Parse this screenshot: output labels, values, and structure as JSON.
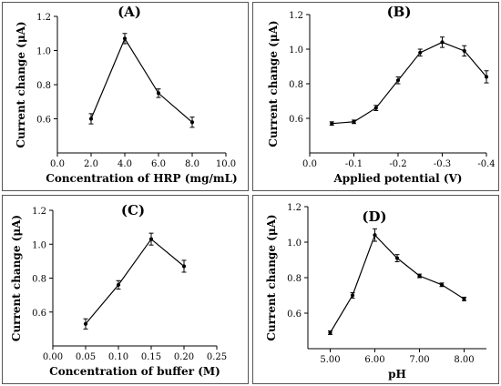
{
  "chart_data": [
    {
      "type": "line",
      "title": "(A)",
      "xlabel": "Concentration of HRP (mg/mL)",
      "ylabel": "Current change (μA)",
      "xlim": [
        0.0,
        10.0
      ],
      "ylim": [
        0.4,
        1.2
      ],
      "xticks": [
        0.0,
        2.0,
        4.0,
        6.0,
        8.0,
        10.0
      ],
      "xtick_labels": [
        "0.0",
        "2.0",
        "4.0",
        "6.0",
        "8.0",
        "10.0"
      ],
      "yticks": [
        0.6,
        0.8,
        1.0,
        1.2
      ],
      "ytick_labels": [
        "0.6",
        "0.8",
        "1.0",
        "1.2"
      ],
      "x": [
        2.0,
        4.0,
        6.0,
        8.0
      ],
      "y": [
        0.6,
        1.07,
        0.75,
        0.58
      ],
      "yerr": [
        0.03,
        0.03,
        0.025,
        0.03
      ],
      "grid": false,
      "legend": "none"
    },
    {
      "type": "line",
      "title": "(B)",
      "xlabel": "Applied potential (V)",
      "ylabel": "Current change (μA)",
      "xlim": [
        0.0,
        -0.4
      ],
      "ylim": [
        0.4,
        1.2
      ],
      "xticks": [
        0.0,
        -0.1,
        -0.2,
        -0.3,
        -0.4
      ],
      "xtick_labels": [
        "0.0",
        "-0.1",
        "-0.2",
        "-0.3",
        "-0.4"
      ],
      "yticks": [
        0.6,
        0.8,
        1.0,
        1.2
      ],
      "ytick_labels": [
        "0.6",
        "0.8",
        "1.0",
        "1.2"
      ],
      "x": [
        -0.05,
        -0.1,
        -0.15,
        -0.2,
        -0.25,
        -0.3,
        -0.35,
        -0.4
      ],
      "y": [
        0.57,
        0.58,
        0.66,
        0.82,
        0.98,
        1.04,
        0.99,
        0.84
      ],
      "yerr": [
        0.01,
        0.01,
        0.015,
        0.02,
        0.02,
        0.03,
        0.03,
        0.035
      ],
      "grid": false,
      "legend": "none"
    },
    {
      "type": "line",
      "title": "(C)",
      "xlabel": "Concentration of buffer (M)",
      "ylabel": "Current change (μA)",
      "xlim": [
        0.0,
        0.25
      ],
      "ylim": [
        0.4,
        1.2
      ],
      "xticks": [
        0.0,
        0.05,
        0.1,
        0.15,
        0.2,
        0.25
      ],
      "xtick_labels": [
        "0.00",
        "0.05",
        "0.10",
        "0.15",
        "0.20",
        "0.25"
      ],
      "yticks": [
        0.6,
        0.8,
        1.0,
        1.2
      ],
      "ytick_labels": [
        "0.6",
        "0.8",
        "1.0",
        "1.2"
      ],
      "x": [
        0.05,
        0.1,
        0.15,
        0.2
      ],
      "y": [
        0.53,
        0.76,
        1.03,
        0.87
      ],
      "yerr": [
        0.03,
        0.025,
        0.035,
        0.035
      ],
      "grid": false,
      "legend": "none"
    },
    {
      "type": "line",
      "title": "(D)",
      "xlabel": "pH",
      "ylabel": "Current change (μA)",
      "xlim": [
        4.5,
        8.5
      ],
      "ylim": [
        0.4,
        1.2
      ],
      "xticks": [
        5.0,
        6.0,
        7.0,
        8.0
      ],
      "xtick_labels": [
        "5.00",
        "6.00",
        "7.00",
        "8.00"
      ],
      "yticks": [
        0.6,
        0.8,
        1.0,
        1.2
      ],
      "ytick_labels": [
        "0.6",
        "0.8",
        "1.0",
        "1.2"
      ],
      "x": [
        5.0,
        5.5,
        6.0,
        6.5,
        7.0,
        7.5,
        8.0
      ],
      "y": [
        0.49,
        0.7,
        1.04,
        0.91,
        0.81,
        0.76,
        0.68
      ],
      "yerr": [
        0.01,
        0.015,
        0.035,
        0.02,
        0.01,
        0.01,
        0.01
      ],
      "grid": false,
      "legend": "none"
    }
  ]
}
